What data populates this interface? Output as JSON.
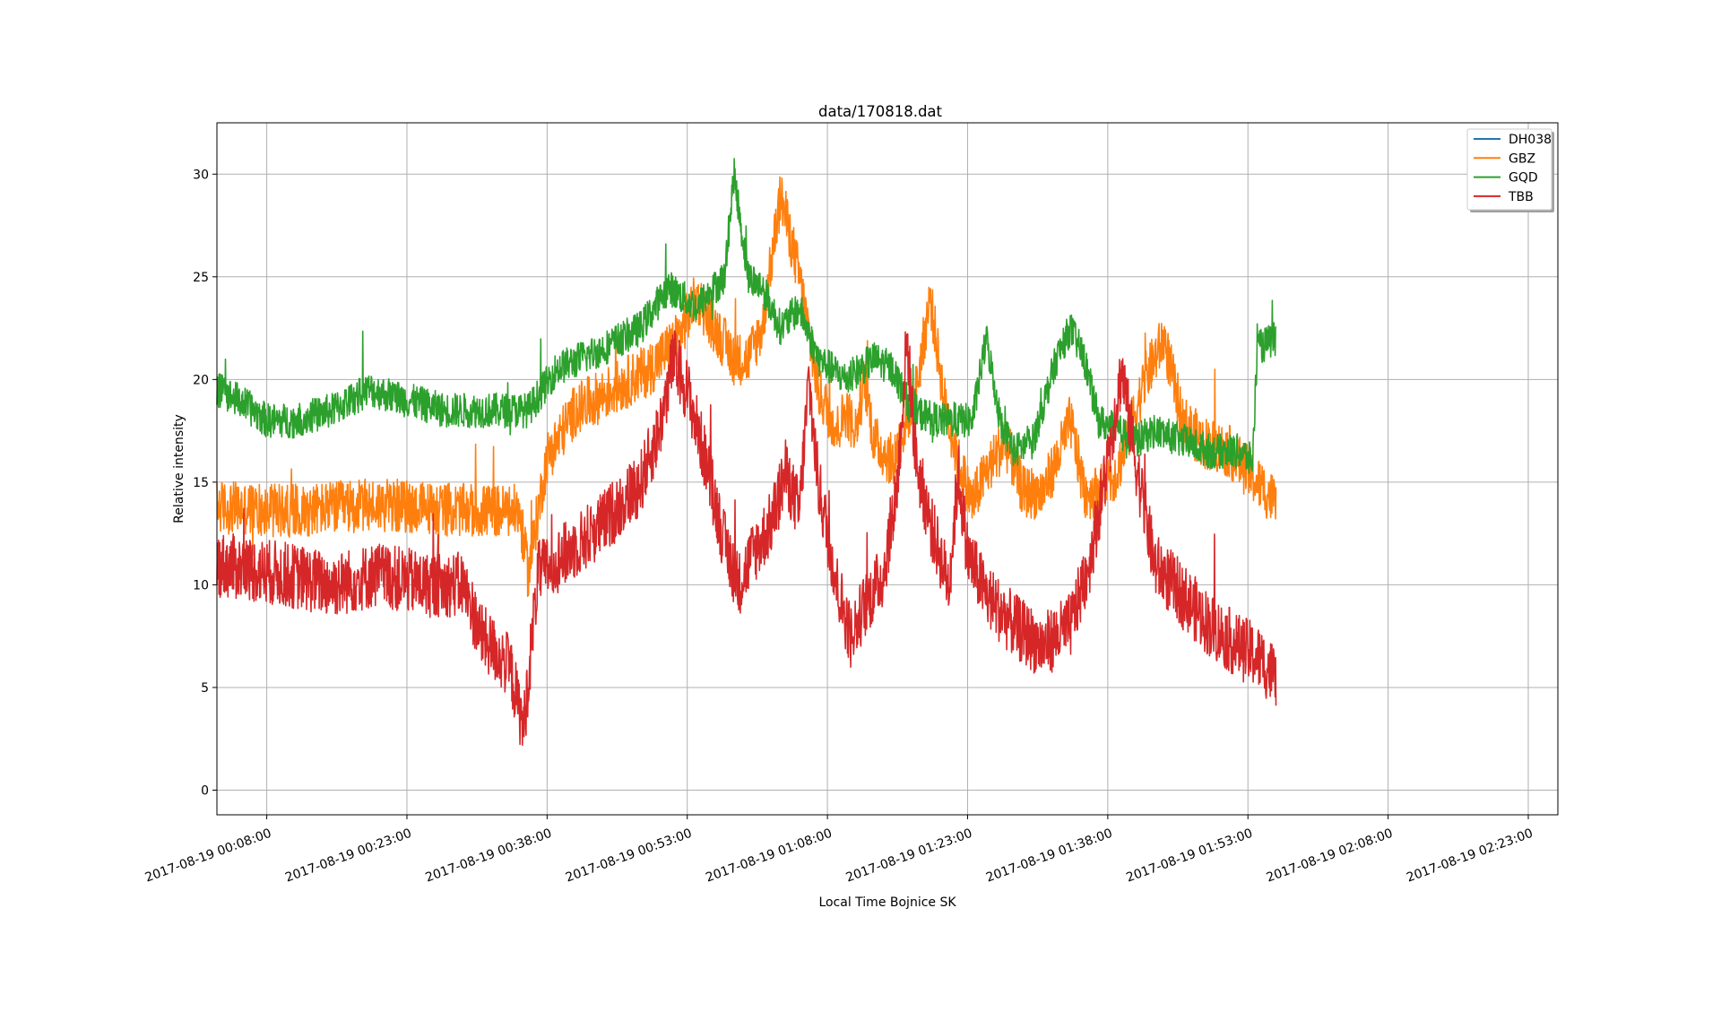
{
  "chart_data": {
    "type": "line",
    "title": "data/170818.dat",
    "xlabel": "Local Time Bojnice SK",
    "ylabel": "Relative intensity",
    "x_unit": "minutes",
    "xlim": [
      "2017-08-19 00:02:40",
      "2017-08-19 02:26:10"
    ],
    "ylim": [
      -1.2,
      32.5
    ],
    "x_ticks": [
      "2017-08-19 00:08:00",
      "2017-08-19 00:23:00",
      "2017-08-19 00:38:00",
      "2017-08-19 00:53:00",
      "2017-08-19 01:08:00",
      "2017-08-19 01:23:00",
      "2017-08-19 01:38:00",
      "2017-08-19 01:53:00",
      "2017-08-19 02:08:00",
      "2017-08-19 02:23:00"
    ],
    "y_ticks": [
      0,
      5,
      10,
      15,
      20,
      25,
      30
    ],
    "grid": true,
    "legend_position": "top-right",
    "series": [
      {
        "name": "DH038",
        "color": "#1f77b4",
        "noise": 0,
        "points": []
      },
      {
        "name": "GBZ",
        "color": "#ff7f0e",
        "noise": 1.3,
        "points": [
          [
            "2017-08-19 00:02:40",
            13.8
          ],
          [
            "2017-08-19 00:10:00",
            13.6
          ],
          [
            "2017-08-19 00:20:00",
            13.9
          ],
          [
            "2017-08-19 00:30:00",
            13.6
          ],
          [
            "2017-08-19 00:35:00",
            13.6
          ],
          [
            "2017-08-19 00:36:00",
            10.5
          ],
          [
            "2017-08-19 00:37:00",
            13.5
          ],
          [
            "2017-08-19 00:38:00",
            16.2
          ],
          [
            "2017-08-19 00:41:00",
            18.5
          ],
          [
            "2017-08-19 00:45:00",
            19.5
          ],
          [
            "2017-08-19 00:49:00",
            20.5
          ],
          [
            "2017-08-19 00:52:00",
            22.0
          ],
          [
            "2017-08-19 00:54:00",
            24.0
          ],
          [
            "2017-08-19 00:56:00",
            22.5
          ],
          [
            "2017-08-19 00:58:00",
            21.0
          ],
          [
            "2017-08-19 00:59:30",
            21.0
          ],
          [
            "2017-08-19 01:01:00",
            22.5
          ],
          [
            "2017-08-19 01:03:00",
            29.0
          ],
          [
            "2017-08-19 01:05:00",
            25.0
          ],
          [
            "2017-08-19 01:07:00",
            19.5
          ],
          [
            "2017-08-19 01:09:00",
            17.5
          ],
          [
            "2017-08-19 01:10:00",
            18.5
          ],
          [
            "2017-08-19 01:11:00",
            17.5
          ],
          [
            "2017-08-19 01:12:00",
            20.0
          ],
          [
            "2017-08-19 01:13:00",
            17.0
          ],
          [
            "2017-08-19 01:15:00",
            16.0
          ],
          [
            "2017-08-19 01:17:30",
            19.5
          ],
          [
            "2017-08-19 01:19:00",
            24.0
          ],
          [
            "2017-08-19 01:20:30",
            19.0
          ],
          [
            "2017-08-19 01:22:00",
            16.0
          ],
          [
            "2017-08-19 01:23:30",
            14.0
          ],
          [
            "2017-08-19 01:25:00",
            15.5
          ],
          [
            "2017-08-19 01:27:00",
            17.0
          ],
          [
            "2017-08-19 01:29:00",
            14.5
          ],
          [
            "2017-08-19 01:31:00",
            14.5
          ],
          [
            "2017-08-19 01:32:30",
            16.0
          ],
          [
            "2017-08-19 01:34:00",
            18.0
          ],
          [
            "2017-08-19 01:35:30",
            14.5
          ],
          [
            "2017-08-19 01:37:00",
            14.5
          ],
          [
            "2017-08-19 01:39:00",
            15.5
          ],
          [
            "2017-08-19 01:42:00",
            20.0
          ],
          [
            "2017-08-19 01:44:00",
            22.0
          ],
          [
            "2017-08-19 01:46:00",
            18.0
          ],
          [
            "2017-08-19 01:48:00",
            17.0
          ],
          [
            "2017-08-19 01:51:00",
            16.5
          ],
          [
            "2017-08-19 01:53:00",
            15.5
          ],
          [
            "2017-08-19 01:55:00",
            14.5
          ],
          [
            "2017-08-19 01:56:00",
            14.0
          ]
        ]
      },
      {
        "name": "GQD",
        "color": "#2ca02c",
        "noise": 0.85,
        "points": [
          [
            "2017-08-19 00:02:40",
            19.5
          ],
          [
            "2017-08-19 00:05:00",
            19.0
          ],
          [
            "2017-08-19 00:08:00",
            18.0
          ],
          [
            "2017-08-19 00:11:00",
            18.0
          ],
          [
            "2017-08-19 00:15:00",
            18.5
          ],
          [
            "2017-08-19 00:19:00",
            19.5
          ],
          [
            "2017-08-19 00:23:00",
            19.0
          ],
          [
            "2017-08-19 00:27:00",
            18.5
          ],
          [
            "2017-08-19 00:31:00",
            18.5
          ],
          [
            "2017-08-19 00:36:00",
            18.5
          ],
          [
            "2017-08-19 00:39:00",
            20.5
          ],
          [
            "2017-08-19 00:44:00",
            21.5
          ],
          [
            "2017-08-19 00:48:00",
            22.5
          ],
          [
            "2017-08-19 00:51:00",
            24.5
          ],
          [
            "2017-08-19 00:54:00",
            23.5
          ],
          [
            "2017-08-19 00:57:00",
            25.0
          ],
          [
            "2017-08-19 00:58:00",
            30.0
          ],
          [
            "2017-08-19 00:59:30",
            25.0
          ],
          [
            "2017-08-19 01:01:00",
            24.5
          ],
          [
            "2017-08-19 01:03:00",
            22.5
          ],
          [
            "2017-08-19 01:05:00",
            23.5
          ],
          [
            "2017-08-19 01:07:00",
            21.0
          ],
          [
            "2017-08-19 01:10:00",
            20.0
          ],
          [
            "2017-08-19 01:13:00",
            21.0
          ],
          [
            "2017-08-19 01:15:00",
            20.5
          ],
          [
            "2017-08-19 01:17:00",
            18.5
          ],
          [
            "2017-08-19 01:20:00",
            18.0
          ],
          [
            "2017-08-19 01:22:00",
            18.0
          ],
          [
            "2017-08-19 01:23:30",
            18.0
          ],
          [
            "2017-08-19 01:25:00",
            22.0
          ],
          [
            "2017-08-19 01:26:30",
            18.0
          ],
          [
            "2017-08-19 01:28:00",
            16.5
          ],
          [
            "2017-08-19 01:30:00",
            17.0
          ],
          [
            "2017-08-19 01:32:30",
            21.0
          ],
          [
            "2017-08-19 01:34:00",
            22.5
          ],
          [
            "2017-08-19 01:35:30",
            21.0
          ],
          [
            "2017-08-19 01:37:00",
            18.0
          ],
          [
            "2017-08-19 01:39:00",
            17.5
          ],
          [
            "2017-08-19 01:41:00",
            17.0
          ],
          [
            "2017-08-19 01:43:00",
            17.5
          ],
          [
            "2017-08-19 01:46:00",
            17.0
          ],
          [
            "2017-08-19 01:49:00",
            16.5
          ],
          [
            "2017-08-19 01:52:00",
            16.5
          ],
          [
            "2017-08-19 01:53:30",
            16.0
          ],
          [
            "2017-08-19 01:54:00",
            21.5
          ],
          [
            "2017-08-19 01:56:00",
            22.0
          ]
        ]
      },
      {
        "name": "TBB",
        "color": "#d62728",
        "noise": 1.6,
        "points": [
          [
            "2017-08-19 00:02:40",
            11.0
          ],
          [
            "2017-08-19 00:10:00",
            10.5
          ],
          [
            "2017-08-19 00:15:00",
            10.0
          ],
          [
            "2017-08-19 00:20:00",
            10.5
          ],
          [
            "2017-08-19 00:25:00",
            10.0
          ],
          [
            "2017-08-19 00:29:00",
            10.0
          ],
          [
            "2017-08-19 00:31:00",
            7.5
          ],
          [
            "2017-08-19 00:34:00",
            6.0
          ],
          [
            "2017-08-19 00:35:30",
            3.0
          ],
          [
            "2017-08-19 00:37:00",
            10.5
          ],
          [
            "2017-08-19 00:40:00",
            11.5
          ],
          [
            "2017-08-19 00:44:00",
            13.0
          ],
          [
            "2017-08-19 00:48:00",
            15.0
          ],
          [
            "2017-08-19 00:50:00",
            17.5
          ],
          [
            "2017-08-19 00:51:30",
            21.0
          ],
          [
            "2017-08-19 00:53:00",
            19.5
          ],
          [
            "2017-08-19 00:55:00",
            16.0
          ],
          [
            "2017-08-19 00:57:00",
            12.0
          ],
          [
            "2017-08-19 00:58:30",
            10.0
          ],
          [
            "2017-08-19 01:00:00",
            11.5
          ],
          [
            "2017-08-19 01:02:00",
            13.0
          ],
          [
            "2017-08-19 01:03:30",
            15.5
          ],
          [
            "2017-08-19 01:05:00",
            13.5
          ],
          [
            "2017-08-19 01:06:00",
            20.0
          ],
          [
            "2017-08-19 01:07:00",
            15.0
          ],
          [
            "2017-08-19 01:09:00",
            10.0
          ],
          [
            "2017-08-19 01:10:30",
            7.5
          ],
          [
            "2017-08-19 01:12:00",
            9.0
          ],
          [
            "2017-08-19 01:14:00",
            10.5
          ],
          [
            "2017-08-19 01:15:30",
            15.0
          ],
          [
            "2017-08-19 01:16:30",
            22.0
          ],
          [
            "2017-08-19 01:17:30",
            16.0
          ],
          [
            "2017-08-19 01:19:00",
            13.0
          ],
          [
            "2017-08-19 01:21:00",
            10.0
          ],
          [
            "2017-08-19 01:22:00",
            15.5
          ],
          [
            "2017-08-19 01:23:00",
            11.5
          ],
          [
            "2017-08-19 01:25:00",
            9.5
          ],
          [
            "2017-08-19 01:28:00",
            8.0
          ],
          [
            "2017-08-19 01:31:00",
            7.0
          ],
          [
            "2017-08-19 01:34:00",
            8.0
          ],
          [
            "2017-08-19 01:36:00",
            11.0
          ],
          [
            "2017-08-19 01:38:00",
            16.0
          ],
          [
            "2017-08-19 01:39:30",
            20.5
          ],
          [
            "2017-08-19 01:41:00",
            16.0
          ],
          [
            "2017-08-19 01:43:00",
            11.0
          ],
          [
            "2017-08-19 01:46:00",
            9.5
          ],
          [
            "2017-08-19 01:49:00",
            8.0
          ],
          [
            "2017-08-19 01:52:00",
            7.0
          ],
          [
            "2017-08-19 01:54:00",
            6.5
          ],
          [
            "2017-08-19 01:56:00",
            5.5
          ]
        ]
      }
    ]
  }
}
